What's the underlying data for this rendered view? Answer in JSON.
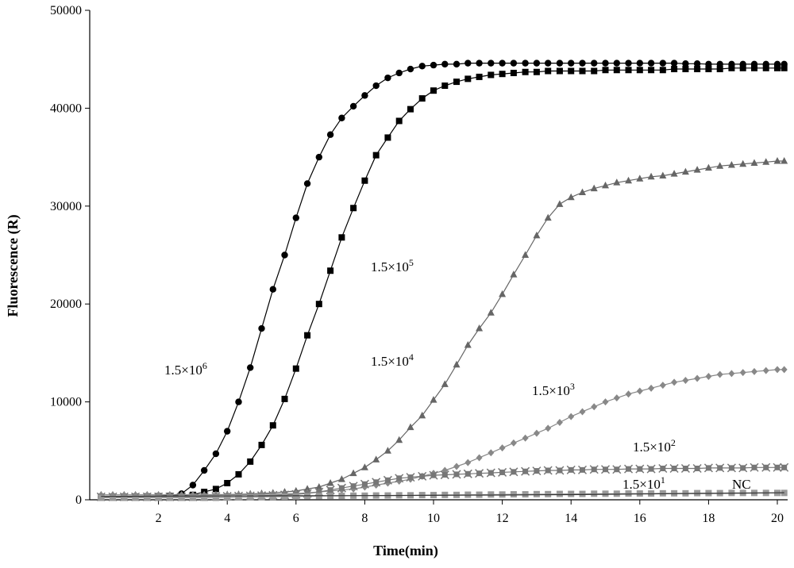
{
  "chart_data": {
    "type": "line",
    "xlabel": "Time(min)",
    "ylabel": "Fluorescence (R)",
    "xlim": [
      0,
      20.3
    ],
    "ylim": [
      0,
      50000
    ],
    "xticks": [
      2,
      4,
      6,
      8,
      10,
      12,
      14,
      16,
      18,
      20
    ],
    "yticks": [
      0,
      10000,
      20000,
      30000,
      40000,
      50000
    ],
    "grid": false,
    "legend": "none",
    "series": [
      {
        "name": "1.5×10⁶",
        "label_base": "1.5×10",
        "label_exp": "6",
        "color": "#000000",
        "marker": "circle",
        "x": [
          0.33,
          0.67,
          1.0,
          1.33,
          1.67,
          2.0,
          2.33,
          2.67,
          3.0,
          3.33,
          3.67,
          4.0,
          4.33,
          4.67,
          5.0,
          5.33,
          5.67,
          6.0,
          6.33,
          6.67,
          7.0,
          7.33,
          7.67,
          8.0,
          8.33,
          8.67,
          9.0,
          9.33,
          9.67,
          10.0,
          10.33,
          10.67,
          11.0,
          11.33,
          11.67,
          12.0,
          12.33,
          12.67,
          13.0,
          13.33,
          13.67,
          14.0,
          14.33,
          14.67,
          15.0,
          15.33,
          15.67,
          16.0,
          16.33,
          16.67,
          17.0,
          17.33,
          17.67,
          18.0,
          18.33,
          18.67,
          19.0,
          19.33,
          19.67,
          20.0,
          20.2
        ],
        "y": [
          300,
          300,
          310,
          320,
          330,
          360,
          420,
          620,
          1500,
          3000,
          4700,
          7000,
          10000,
          13500,
          17500,
          21500,
          25000,
          28800,
          32300,
          35000,
          37300,
          39000,
          40200,
          41300,
          42300,
          43100,
          43600,
          44000,
          44300,
          44400,
          44500,
          44500,
          44600,
          44600,
          44600,
          44600,
          44600,
          44600,
          44600,
          44600,
          44600,
          44600,
          44600,
          44600,
          44600,
          44600,
          44600,
          44600,
          44600,
          44600,
          44600,
          44550,
          44550,
          44500,
          44500,
          44500,
          44500,
          44500,
          44500,
          44500,
          44500
        ]
      },
      {
        "name": "1.5×10⁵",
        "label_base": "1.5×10",
        "label_exp": "5",
        "color": "#000000",
        "marker": "square",
        "x": [
          0.33,
          0.67,
          1.0,
          1.33,
          1.67,
          2.0,
          2.33,
          2.67,
          3.0,
          3.33,
          3.67,
          4.0,
          4.33,
          4.67,
          5.0,
          5.33,
          5.67,
          6.0,
          6.33,
          6.67,
          7.0,
          7.33,
          7.67,
          8.0,
          8.33,
          8.67,
          9.0,
          9.33,
          9.67,
          10.0,
          10.33,
          10.67,
          11.0,
          11.33,
          11.67,
          12.0,
          12.33,
          12.67,
          13.0,
          13.33,
          13.67,
          14.0,
          14.33,
          14.67,
          15.0,
          15.33,
          15.67,
          16.0,
          16.33,
          16.67,
          17.0,
          17.33,
          17.67,
          18.0,
          18.33,
          18.67,
          19.0,
          19.33,
          19.67,
          20.0,
          20.2
        ],
        "y": [
          300,
          310,
          320,
          330,
          340,
          360,
          380,
          420,
          500,
          800,
          1100,
          1700,
          2600,
          3900,
          5600,
          7600,
          10300,
          13400,
          16800,
          20000,
          23400,
          26800,
          29800,
          32600,
          35200,
          37000,
          38700,
          39900,
          41000,
          41800,
          42300,
          42700,
          43000,
          43200,
          43400,
          43500,
          43600,
          43700,
          43700,
          43800,
          43800,
          43800,
          43800,
          43800,
          43900,
          43900,
          43900,
          43900,
          43900,
          43900,
          44000,
          44000,
          44000,
          44000,
          44000,
          44100,
          44100,
          44100,
          44100,
          44100,
          44100
        ]
      },
      {
        "name": "1.5×10⁴",
        "label_base": "1.5×10",
        "label_exp": "4",
        "color": "#666666",
        "marker": "triangle",
        "x": [
          0.33,
          0.67,
          1.0,
          1.33,
          1.67,
          2.0,
          2.33,
          2.67,
          3.0,
          3.33,
          3.67,
          4.0,
          4.33,
          4.67,
          5.0,
          5.33,
          5.67,
          6.0,
          6.33,
          6.67,
          7.0,
          7.33,
          7.67,
          8.0,
          8.33,
          8.67,
          9.0,
          9.33,
          9.67,
          10.0,
          10.33,
          10.67,
          11.0,
          11.33,
          11.67,
          12.0,
          12.33,
          12.67,
          13.0,
          13.33,
          13.67,
          14.0,
          14.33,
          14.67,
          15.0,
          15.33,
          15.67,
          16.0,
          16.33,
          16.67,
          17.0,
          17.33,
          17.67,
          18.0,
          18.33,
          18.67,
          19.0,
          19.33,
          19.67,
          20.0,
          20.2
        ],
        "y": [
          500,
          500,
          500,
          500,
          500,
          500,
          500,
          500,
          500,
          500,
          520,
          540,
          560,
          600,
          650,
          700,
          800,
          900,
          1100,
          1300,
          1700,
          2100,
          2700,
          3300,
          4100,
          5000,
          6100,
          7400,
          8600,
          10200,
          11800,
          13800,
          15800,
          17500,
          19100,
          21000,
          23000,
          25000,
          27000,
          28800,
          30200,
          30900,
          31400,
          31800,
          32100,
          32400,
          32600,
          32800,
          33000,
          33100,
          33300,
          33500,
          33700,
          33900,
          34100,
          34200,
          34300,
          34400,
          34500,
          34600,
          34600
        ]
      },
      {
        "name": "1.5×10³",
        "label_base": "1.5×10",
        "label_exp": "3",
        "color": "#888888",
        "marker": "diamond",
        "x": [
          0.33,
          0.67,
          1.0,
          1.33,
          1.67,
          2.0,
          2.33,
          2.67,
          3.0,
          3.33,
          3.67,
          4.0,
          4.33,
          4.67,
          5.0,
          5.33,
          5.67,
          6.0,
          6.33,
          6.67,
          7.0,
          7.33,
          7.67,
          8.0,
          8.33,
          8.67,
          9.0,
          9.33,
          9.67,
          10.0,
          10.33,
          10.67,
          11.0,
          11.33,
          11.67,
          12.0,
          12.33,
          12.67,
          13.0,
          13.33,
          13.67,
          14.0,
          14.33,
          14.67,
          15.0,
          15.33,
          15.67,
          16.0,
          16.33,
          16.67,
          17.0,
          17.33,
          17.67,
          18.0,
          18.33,
          18.67,
          19.0,
          19.33,
          19.67,
          20.0,
          20.2
        ],
        "y": [
          500,
          500,
          500,
          500,
          500,
          500,
          500,
          500,
          500,
          500,
          500,
          500,
          520,
          540,
          560,
          580,
          600,
          650,
          700,
          800,
          900,
          1000,
          1100,
          1300,
          1500,
          1700,
          1900,
          2100,
          2400,
          2700,
          3000,
          3400,
          3800,
          4300,
          4800,
          5300,
          5800,
          6300,
          6800,
          7300,
          7900,
          8500,
          9000,
          9500,
          10000,
          10400,
          10800,
          11100,
          11400,
          11700,
          12000,
          12200,
          12400,
          12600,
          12800,
          12900,
          13000,
          13100,
          13200,
          13300,
          13300
        ]
      },
      {
        "name": "1.5×10²",
        "label_base": "1.5×10",
        "label_exp": "2",
        "color": "#777777",
        "marker": "star",
        "x": [
          0.33,
          0.67,
          1.0,
          1.33,
          1.67,
          2.0,
          2.33,
          2.67,
          3.0,
          3.33,
          3.67,
          4.0,
          4.33,
          4.67,
          5.0,
          5.33,
          5.67,
          6.0,
          6.33,
          6.67,
          7.0,
          7.33,
          7.67,
          8.0,
          8.33,
          8.67,
          9.0,
          9.33,
          9.67,
          10.0,
          10.33,
          10.67,
          11.0,
          11.33,
          11.67,
          12.0,
          12.33,
          12.67,
          13.0,
          13.33,
          13.67,
          14.0,
          14.33,
          14.67,
          15.0,
          15.33,
          15.67,
          16.0,
          16.33,
          16.67,
          17.0,
          17.33,
          17.67,
          18.0,
          18.33,
          18.67,
          19.0,
          19.33,
          19.67,
          20.0,
          20.2
        ],
        "y": [
          300,
          300,
          300,
          300,
          300,
          300,
          300,
          300,
          300,
          320,
          340,
          360,
          380,
          400,
          430,
          460,
          500,
          550,
          650,
          800,
          1000,
          1200,
          1400,
          1600,
          1800,
          2000,
          2200,
          2300,
          2400,
          2500,
          2550,
          2600,
          2650,
          2700,
          2750,
          2800,
          2850,
          2900,
          2950,
          3000,
          3000,
          3050,
          3050,
          3100,
          3100,
          3100,
          3150,
          3150,
          3150,
          3200,
          3200,
          3200,
          3200,
          3250,
          3250,
          3250,
          3250,
          3300,
          3300,
          3300,
          3300
        ]
      },
      {
        "name": "1.5×10¹",
        "label_base": "1.5×10",
        "label_exp": "1",
        "color": "#999999",
        "marker": "square",
        "x": [
          0.33,
          0.67,
          1.0,
          1.33,
          1.67,
          2.0,
          2.33,
          2.67,
          3.0,
          3.33,
          3.67,
          4.0,
          4.33,
          4.67,
          5.0,
          5.33,
          5.67,
          6.0,
          6.33,
          6.67,
          7.0,
          7.33,
          7.67,
          8.0,
          8.33,
          8.67,
          9.0,
          9.33,
          9.67,
          10.0,
          10.33,
          10.67,
          11.0,
          11.33,
          11.67,
          12.0,
          12.33,
          12.67,
          13.0,
          13.33,
          13.67,
          14.0,
          14.33,
          14.67,
          15.0,
          15.33,
          15.67,
          16.0,
          16.33,
          16.67,
          17.0,
          17.33,
          17.67,
          18.0,
          18.33,
          18.67,
          19.0,
          19.33,
          19.67,
          20.0,
          20.2
        ],
        "y": [
          200,
          200,
          200,
          200,
          200,
          200,
          200,
          200,
          200,
          200,
          200,
          220,
          240,
          260,
          280,
          300,
          320,
          340,
          360,
          380,
          400,
          400,
          420,
          420,
          440,
          440,
          460,
          460,
          480,
          480,
          500,
          500,
          520,
          520,
          540,
          540,
          560,
          560,
          580,
          580,
          600,
          600,
          600,
          620,
          620,
          620,
          640,
          640,
          640,
          660,
          660,
          660,
          680,
          680,
          680,
          700,
          700,
          700,
          700,
          700,
          700
        ]
      },
      {
        "name": "NC",
        "label_base": "NC",
        "label_exp": "",
        "color": "#333333",
        "marker": "none",
        "x": [
          0.33,
          1.0,
          2.0,
          3.0,
          4.0,
          5.0,
          6.0,
          7.0,
          8.0,
          9.0,
          10.0,
          11.0,
          12.0,
          13.0,
          14.0,
          15.0,
          16.0,
          17.0,
          18.0,
          19.0,
          20.0,
          20.2
        ],
        "y": [
          350,
          360,
          370,
          380,
          390,
          400,
          410,
          420,
          430,
          440,
          450,
          470,
          490,
          510,
          530,
          560,
          590,
          620,
          650,
          680,
          710,
          720
        ]
      }
    ]
  }
}
